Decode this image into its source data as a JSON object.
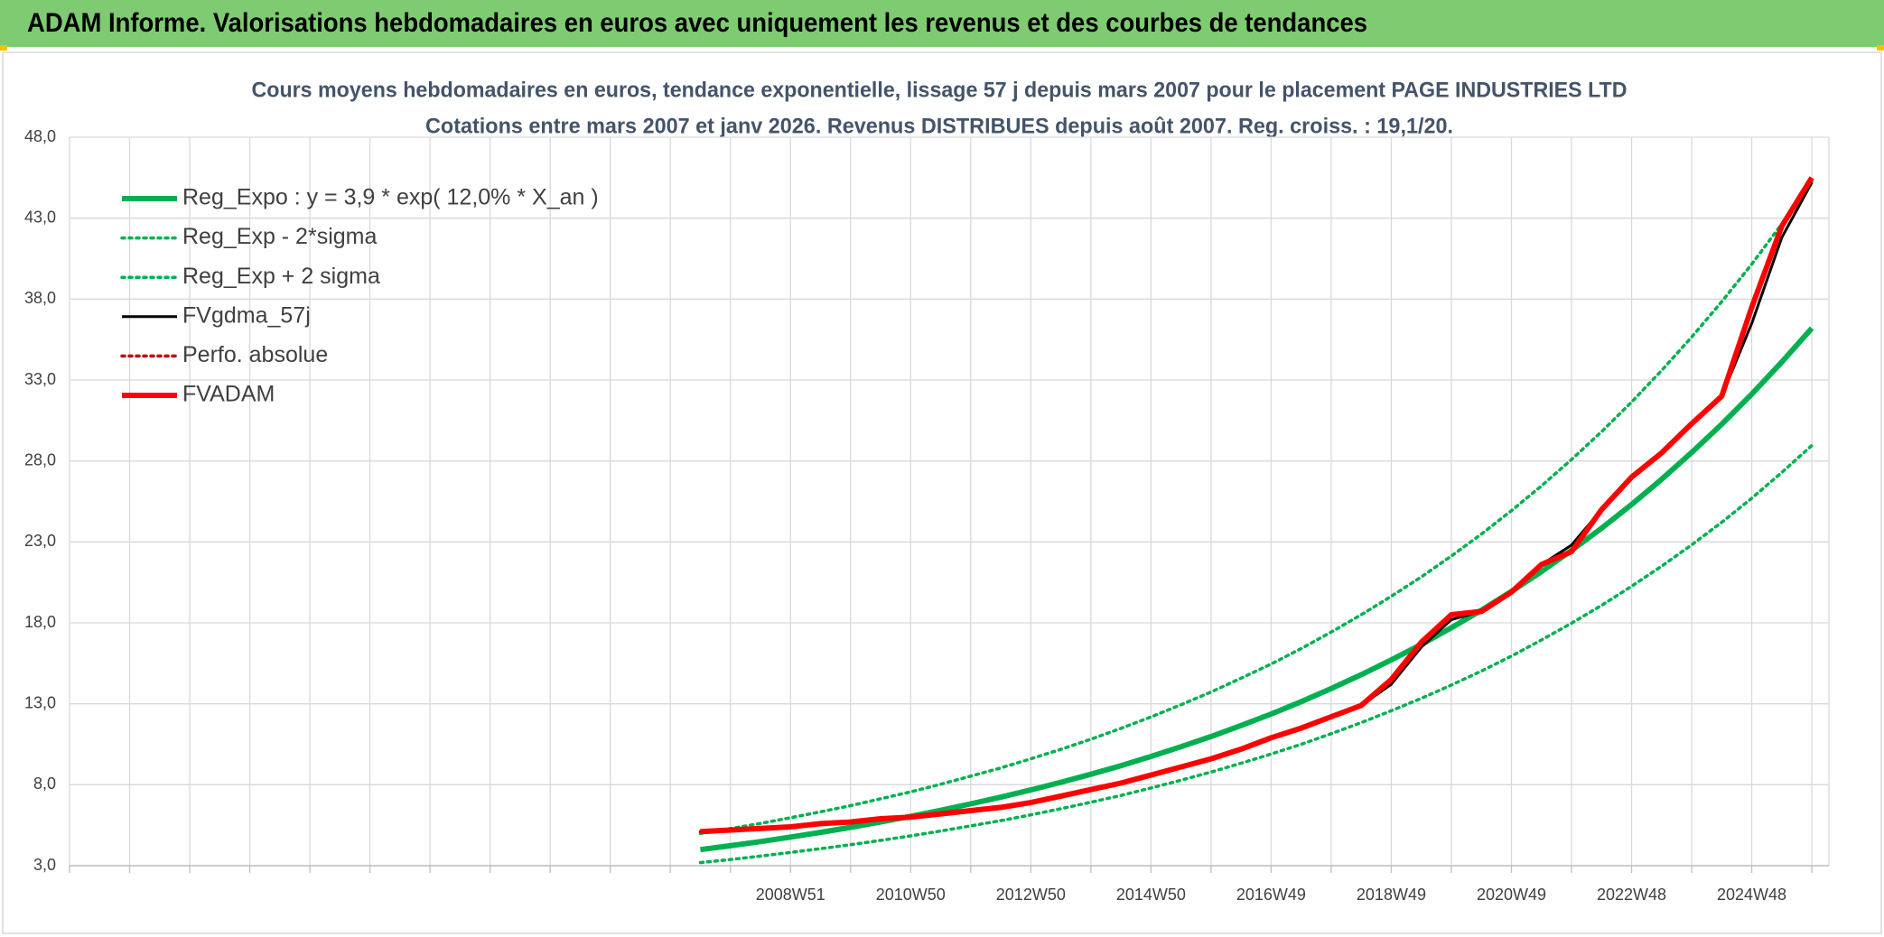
{
  "header": {
    "title": "ADAM Informe. Valorisations hebdomadaires en euros avec uniquement les revenus et des courbes de tendances"
  },
  "chart_data": {
    "type": "line",
    "title": "Cours moyens hebdomadaires en euros, tendance exponentielle, lissage 57 j depuis mars 2007 pour le placement PAGE INDUSTRIES LTD",
    "subtitle": "Cotations entre mars 2007 et janv 2026. Revenus DISTRIBUES depuis août 2007. Reg. croiss. : 19,1/20.",
    "categories": [
      null,
      null,
      null,
      null,
      null,
      null,
      null,
      null,
      null,
      null,
      null,
      null,
      null,
      null,
      null,
      null,
      null,
      null,
      null,
      null,
      null,
      null,
      null,
      null,
      "2008W51",
      null,
      null,
      null,
      "2010W50",
      null,
      null,
      null,
      "2012W50",
      null,
      null,
      null,
      "2014W50",
      null,
      null,
      null,
      "2016W49",
      null,
      null,
      null,
      "2018W49",
      null,
      null,
      null,
      "2020W49",
      null,
      null,
      null,
      "2022W48",
      null,
      null,
      null,
      "2024W48",
      null,
      null
    ],
    "ylim": [
      3,
      48
    ],
    "yticks": [
      {
        "value": 3,
        "label": "3,0"
      },
      {
        "value": 8,
        "label": "8,0"
      },
      {
        "value": 13,
        "label": "13,0"
      },
      {
        "value": 18,
        "label": "18,0"
      },
      {
        "value": 23,
        "label": "23,0"
      },
      {
        "value": 28,
        "label": "28,0"
      },
      {
        "value": 33,
        "label": "33,0"
      },
      {
        "value": 38,
        "label": "38,0"
      },
      {
        "value": 43,
        "label": "43,0"
      },
      {
        "value": 48,
        "label": "48,0"
      }
    ],
    "grid": true,
    "legend": "upper left",
    "series": [
      {
        "name": "Reg_Expo : y = 3,9 * exp( 12,0% *  X_an )",
        "color": "#00b050",
        "line_style": "thick",
        "values": [
          null,
          null,
          null,
          null,
          null,
          null,
          null,
          null,
          null,
          null,
          null,
          null,
          null,
          null,
          null,
          null,
          null,
          null,
          null,
          null,
          null,
          3.99,
          4.23,
          4.49,
          4.77,
          5.06,
          5.37,
          5.7,
          6.05,
          6.42,
          6.82,
          7.23,
          7.68,
          8.15,
          8.65,
          9.18,
          9.75,
          10.35,
          10.98,
          11.66,
          12.37,
          13.13,
          13.94,
          14.8,
          15.71,
          16.67,
          17.7,
          18.78,
          19.94,
          21.17,
          22.47,
          23.85,
          25.31,
          26.87,
          28.52,
          30.27,
          32.13,
          34.11,
          36.2
        ]
      },
      {
        "name": "Reg_Exp - 2*sigma",
        "color": "#00b050",
        "line_style": "dotted",
        "values": [
          null,
          null,
          null,
          null,
          null,
          null,
          null,
          null,
          null,
          null,
          null,
          null,
          null,
          null,
          null,
          null,
          null,
          null,
          null,
          null,
          null,
          3.19,
          3.38,
          3.59,
          3.82,
          4.05,
          4.3,
          4.56,
          4.84,
          5.14,
          5.46,
          5.78,
          6.14,
          6.52,
          6.92,
          7.34,
          7.8,
          8.28,
          8.78,
          9.33,
          9.9,
          10.5,
          11.15,
          11.84,
          12.57,
          13.34,
          14.16,
          15.02,
          15.95,
          16.94,
          17.98,
          19.08,
          20.26,
          21.5,
          22.82,
          24.21,
          25.7,
          27.29,
          28.96
        ]
      },
      {
        "name": "Reg_Exp + 2 sigma",
        "color": "#00b050",
        "line_style": "dotted",
        "values": [
          null,
          null,
          null,
          null,
          null,
          null,
          null,
          null,
          null,
          null,
          null,
          null,
          null,
          null,
          null,
          null,
          null,
          null,
          null,
          null,
          null,
          4.99,
          5.29,
          5.61,
          5.96,
          6.33,
          6.71,
          7.13,
          7.56,
          8.03,
          8.53,
          9.04,
          9.6,
          10.19,
          10.81,
          11.48,
          12.19,
          12.94,
          13.73,
          14.58,
          15.46,
          16.41,
          17.43,
          18.5,
          19.64,
          20.84,
          22.13,
          23.48,
          24.93,
          26.46,
          28.09,
          29.81,
          31.64,
          33.59,
          35.65,
          37.84,
          40.16,
          42.64,
          45.25
        ]
      },
      {
        "name": "FVgdma_57j",
        "color": "#000000",
        "line_style": "solid",
        "values": [
          null,
          null,
          null,
          null,
          null,
          null,
          null,
          null,
          null,
          null,
          null,
          null,
          null,
          null,
          null,
          null,
          null,
          null,
          null,
          null,
          null,
          5.1,
          5.2,
          5.3,
          5.4,
          5.6,
          5.7,
          5.9,
          6.0,
          6.2,
          6.4,
          6.6,
          6.9,
          7.3,
          7.7,
          8.1,
          8.6,
          9.1,
          9.6,
          10.2,
          10.9,
          11.5,
          12.2,
          12.9,
          14.2,
          16.5,
          18.2,
          18.7,
          19.9,
          21.6,
          22.8,
          25.0,
          27.0,
          28.5,
          30.3,
          32.0,
          36.5,
          41.8,
          45.2
        ]
      },
      {
        "name": "Perfo. absolue",
        "color": "#c00000",
        "line_style": "dotted",
        "values": [
          null,
          null,
          null,
          null,
          null,
          null,
          null,
          null,
          null,
          null,
          null,
          null,
          null,
          null,
          null,
          null,
          null,
          null,
          null,
          null,
          null,
          5.1,
          5.2,
          5.3,
          5.4,
          5.6,
          5.7,
          5.9,
          6.0,
          6.2,
          6.4,
          6.6,
          6.9,
          7.3,
          7.7,
          8.1,
          8.6,
          9.1,
          9.6,
          10.2,
          10.9,
          11.5,
          12.2,
          12.9,
          14.5,
          16.8,
          18.5,
          18.7,
          19.9,
          21.6,
          22.4,
          25.0,
          27.0,
          28.5,
          30.3,
          32.0,
          37.5,
          42.5,
          45.5
        ]
      },
      {
        "name": "FVADAM",
        "color": "#ff0000",
        "line_style": "thick",
        "values": [
          null,
          null,
          null,
          null,
          null,
          null,
          null,
          null,
          null,
          null,
          null,
          null,
          null,
          null,
          null,
          null,
          null,
          null,
          null,
          null,
          null,
          5.1,
          5.2,
          5.3,
          5.4,
          5.6,
          5.7,
          5.9,
          6.0,
          6.2,
          6.4,
          6.6,
          6.9,
          7.3,
          7.7,
          8.1,
          8.6,
          9.1,
          9.6,
          10.2,
          10.9,
          11.5,
          12.2,
          12.9,
          14.5,
          16.8,
          18.5,
          18.7,
          19.9,
          21.6,
          22.4,
          25.0,
          27.0,
          28.5,
          30.3,
          32.0,
          37.5,
          42.5,
          45.5
        ]
      }
    ]
  }
}
